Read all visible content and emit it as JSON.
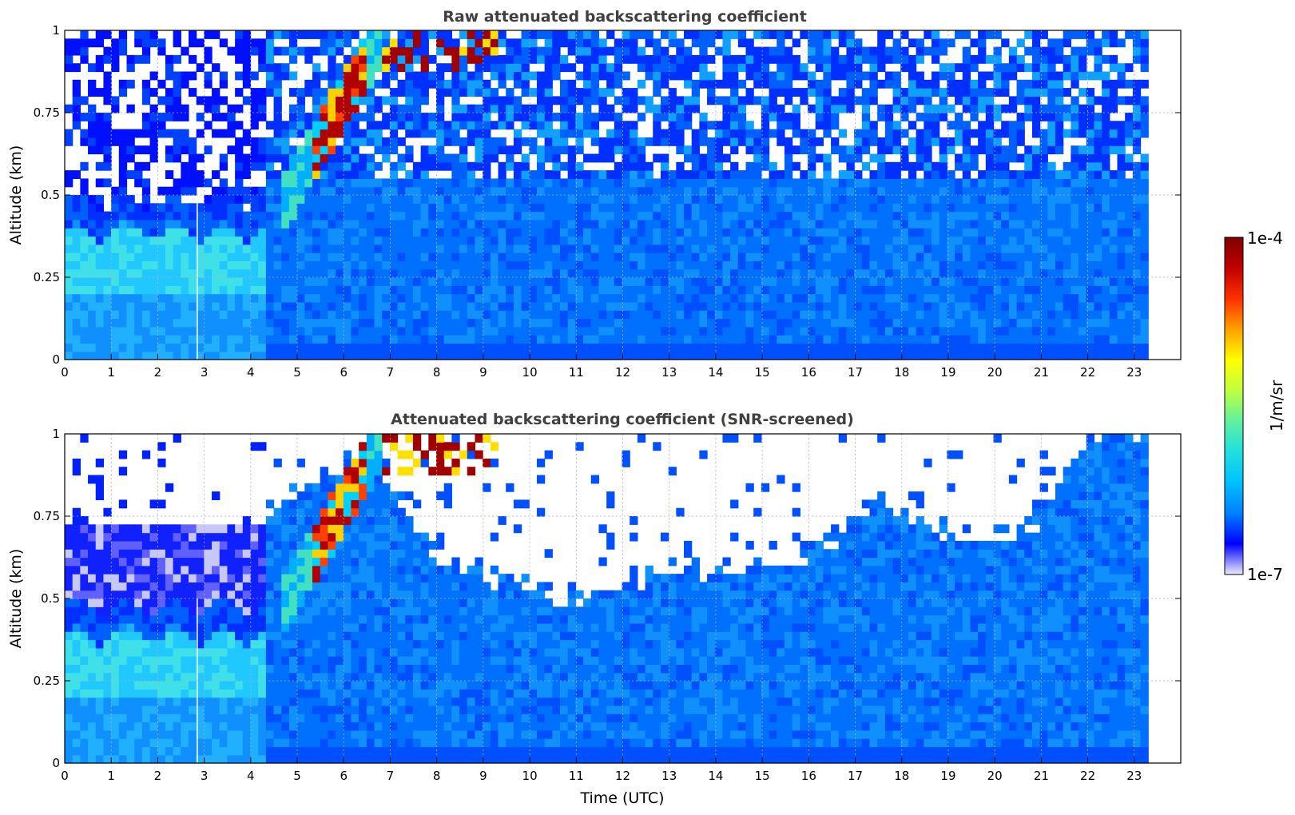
{
  "chart_data": [
    {
      "type": "heatmap",
      "title": "Raw attenuated backscattering coefficient",
      "xlabel": "",
      "ylabel": "Altitude (km)",
      "xlim": [
        0,
        24
      ],
      "ylim": [
        0,
        1
      ],
      "x_ticks": [
        "0",
        "1",
        "2",
        "3",
        "4",
        "5",
        "6",
        "7",
        "8",
        "9",
        "10",
        "11",
        "12",
        "13",
        "14",
        "15",
        "16",
        "17",
        "18",
        "19",
        "20",
        "21",
        "22",
        "23"
      ],
      "y_ticks": [
        "0",
        "0.25",
        "0.5",
        "0.75",
        "1"
      ],
      "data_x_end": 23.3,
      "grid": true,
      "color_scale": "log jet",
      "features": {
        "boundary_layer_top_km_before_4h": 0.5,
        "rising_layer_hours": [
          4.5,
          6.8
        ],
        "high_signal_hours": [
          5.3,
          6.5
        ],
        "vertical_gap_hour": 2.85
      }
    },
    {
      "type": "heatmap",
      "title": "Attenuated backscattering coefficient (SNR-screened)",
      "xlabel": "Time (UTC)",
      "ylabel": "Altitude (km)",
      "xlim": [
        0,
        24
      ],
      "ylim": [
        0,
        1
      ],
      "x_ticks": [
        "0",
        "1",
        "2",
        "3",
        "4",
        "5",
        "6",
        "7",
        "8",
        "9",
        "10",
        "11",
        "12",
        "13",
        "14",
        "15",
        "16",
        "17",
        "18",
        "19",
        "20",
        "21",
        "22",
        "23"
      ],
      "y_ticks": [
        "0",
        "0.25",
        "0.5",
        "0.75",
        "1"
      ],
      "data_x_end": 23.3,
      "grid": true,
      "color_scale": "log jet",
      "features": {
        "screened_top_km_by_hour": [
          [
            0,
            0.72
          ],
          [
            4.2,
            0.76
          ],
          [
            6.5,
            0.95
          ],
          [
            8,
            0.62
          ],
          [
            11,
            0.5
          ],
          [
            13,
            0.58
          ],
          [
            16,
            0.62
          ],
          [
            17.5,
            0.8
          ],
          [
            19.5,
            0.68
          ],
          [
            21,
            0.75
          ],
          [
            22,
            1.0
          ]
        ]
      }
    }
  ],
  "colorbar": {
    "label": "1/m/sr",
    "max_label": "1e-4",
    "min_label": "1e-7",
    "min": 1e-07,
    "max": 0.0001,
    "scale": "log",
    "colors": [
      "#ececf9",
      "#0000ff",
      "#0080ff",
      "#00c0ff",
      "#20e0e0",
      "#60f0a0",
      "#c0ff40",
      "#ffff00",
      "#ffa000",
      "#ff3000",
      "#c00000",
      "#800000"
    ]
  }
}
